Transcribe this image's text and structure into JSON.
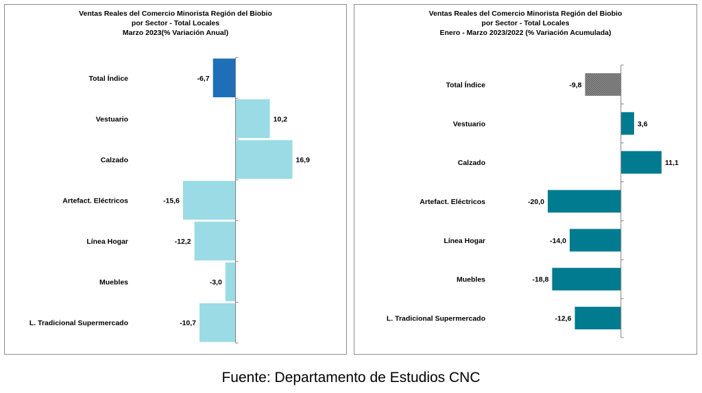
{
  "chart_data": [
    {
      "type": "bar",
      "orientation": "horizontal",
      "title_lines": [
        "Ventas Reales del Comercio Minorista  Región del Biobio",
        "por Sector - Total Locales",
        "Marzo 2023(% Variación Anual)"
      ],
      "categories": [
        "Total Índice",
        "Vestuario",
        "Calzado",
        "Artefact. Eléctricos",
        "Línea Hogar",
        "Muebles",
        "L. Tradicional Supermercado"
      ],
      "values": [
        -6.7,
        10.2,
        16.9,
        -15.6,
        -12.2,
        -3.0,
        -10.7
      ],
      "value_labels": [
        "-6,7",
        "10,2",
        "16,9",
        "-15,6",
        "-12,2",
        "-3,0",
        "-10,7"
      ],
      "colors": [
        "#1f6fb8",
        "#9adbe6",
        "#9adbe6",
        "#9adbe6",
        "#9adbe6",
        "#9adbe6",
        "#9adbe6"
      ],
      "xlim": [
        -16,
        17
      ],
      "grid": false
    },
    {
      "type": "bar",
      "orientation": "horizontal",
      "title_lines": [
        "Ventas Reales del Comercio Minorista Región del Biobio",
        "por Sector - Total Locales",
        "Enero - Marzo 2023/2022  (% Variación Acumulada)"
      ],
      "categories": [
        "Total Índice",
        "Vestuario",
        "Calzado",
        "Artefact. Eléctricos",
        "Línea Hogar",
        "Muebles",
        "L. Tradicional Supermercado"
      ],
      "values": [
        -9.8,
        3.6,
        11.1,
        -20.0,
        -14.0,
        -18.8,
        -12.6
      ],
      "value_labels": [
        "-9,8",
        "3,6",
        "11,1",
        "-20,0",
        "-14,0",
        "-18,8",
        "-12,6"
      ],
      "colors": [
        "#7b7b7b",
        "#007b8f",
        "#007b8f",
        "#007b8f",
        "#007b8f",
        "#007b8f",
        "#007b8f"
      ],
      "patterns": [
        "dotted",
        "solid",
        "solid",
        "solid",
        "solid",
        "solid",
        "solid"
      ],
      "xlim": [
        -20,
        11.1
      ],
      "grid": false
    }
  ],
  "footer": {
    "source": "Fuente: Departamento de Estudios CNC"
  }
}
